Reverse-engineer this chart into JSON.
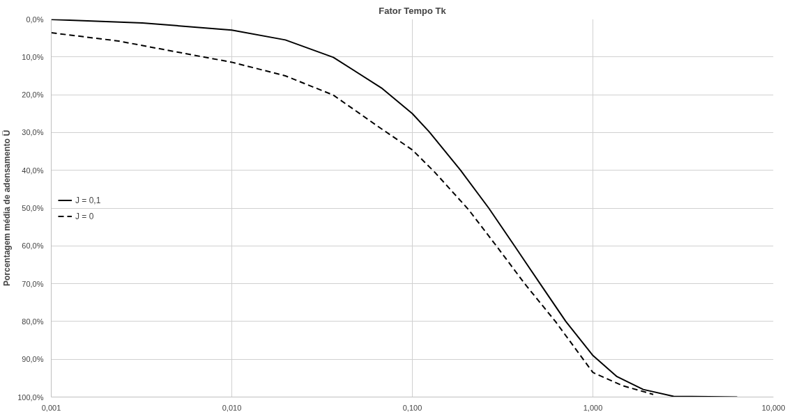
{
  "chart_data": {
    "type": "line",
    "title": "Fator Tempo Tk",
    "ylabel": "Porcentagem média de adensamento U̅",
    "log": "x",
    "grid": true,
    "legend": "left",
    "marker": "none",
    "xlim": [
      0.001,
      10
    ],
    "ylim": [
      100,
      0
    ],
    "xticks": [
      {
        "value": 0.001,
        "label": "0,001"
      },
      {
        "value": 0.01,
        "label": "0,010"
      },
      {
        "value": 0.1,
        "label": "0,100"
      },
      {
        "value": 1,
        "label": "1,000"
      },
      {
        "value": 10,
        "label": "10,000"
      }
    ],
    "yticks": [
      {
        "value": 0,
        "label": "0,0%"
      },
      {
        "value": 10,
        "label": "10,0%"
      },
      {
        "value": 20,
        "label": "20,0%"
      },
      {
        "value": 30,
        "label": "30,0%"
      },
      {
        "value": 40,
        "label": "40,0%"
      },
      {
        "value": 50,
        "label": "50,0%"
      },
      {
        "value": 60,
        "label": "60,0%"
      },
      {
        "value": 70,
        "label": "70,0%"
      },
      {
        "value": 80,
        "label": "80,0%"
      },
      {
        "value": 90,
        "label": "90,0%"
      },
      {
        "value": 100,
        "label": "100,0%"
      }
    ],
    "series": [
      {
        "name": "J = 0,1",
        "color": "#000000",
        "line_style": "solid",
        "x": [
          0.001,
          0.0032,
          0.01,
          0.0198,
          0.0365,
          0.0674,
          0.1,
          0.124,
          0.185,
          0.265,
          0.368,
          0.51,
          0.708,
          1.0,
          1.36,
          1.9,
          2.8,
          6.3
        ],
        "values": [
          0.1,
          1,
          2.9,
          5.5,
          10.1,
          18.2,
          25,
          29.8,
          40,
          50,
          60,
          70,
          80,
          89,
          94.6,
          98,
          99.8,
          100
        ]
      },
      {
        "name": "J = 0",
        "color": "#000000",
        "line_style": "dashed",
        "x": [
          0.001,
          0.00236,
          0.0051,
          0.01,
          0.0198,
          0.0365,
          0.0646,
          0.1,
          0.133,
          0.204,
          0.292,
          0.419,
          0.62,
          1.0,
          1.46,
          2.16
        ],
        "values": [
          3.6,
          5.8,
          8.8,
          11.4,
          15,
          20.1,
          28.4,
          34.6,
          40.5,
          50.3,
          60,
          70,
          80,
          93.5,
          97,
          99.3
        ]
      }
    ]
  }
}
